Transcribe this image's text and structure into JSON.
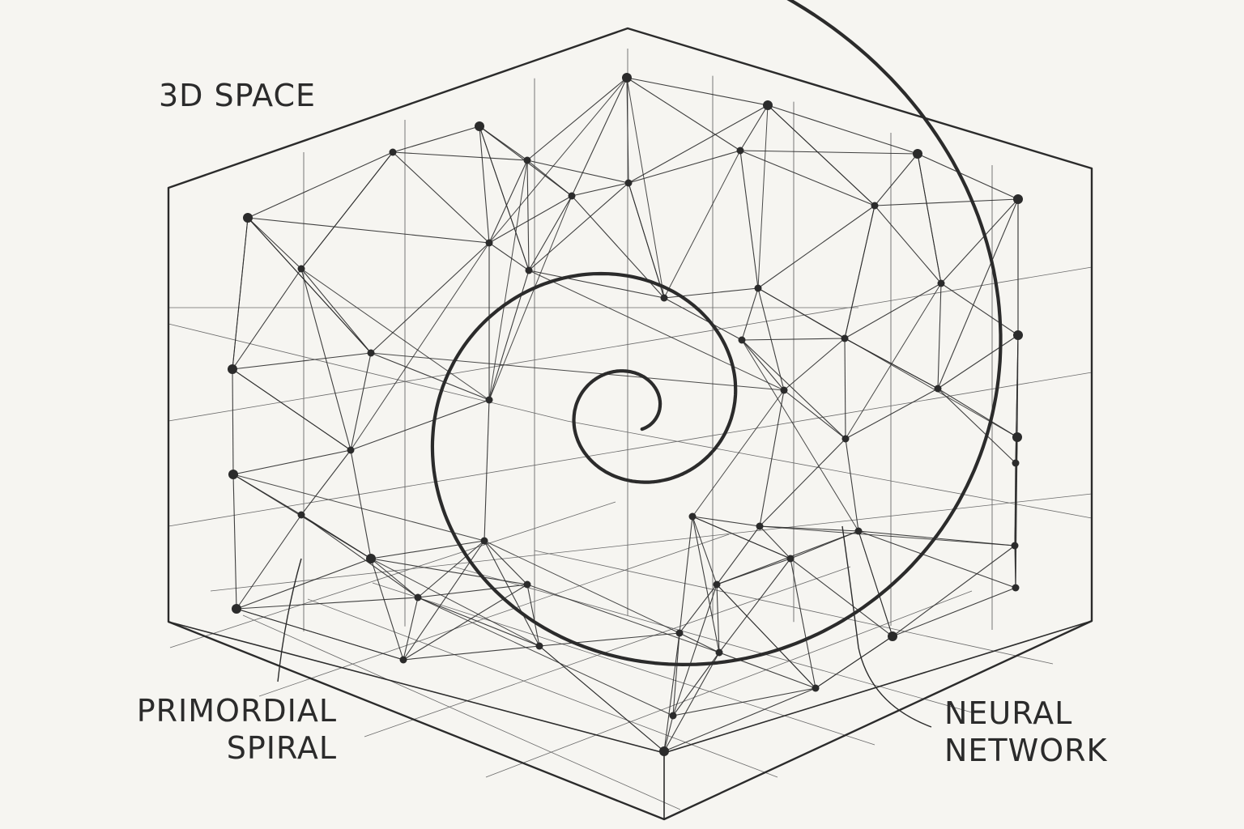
{
  "labels": {
    "space": "3D SPACE",
    "spiral_line1": "PRIMORDIAL",
    "spiral_line2": "SPIRAL",
    "network_line1": "NEURAL",
    "network_line2": "NETWORK"
  },
  "colors": {
    "background": "#f6f5f1",
    "ink": "#2b2b2b",
    "grid": "#6a6a6a"
  }
}
